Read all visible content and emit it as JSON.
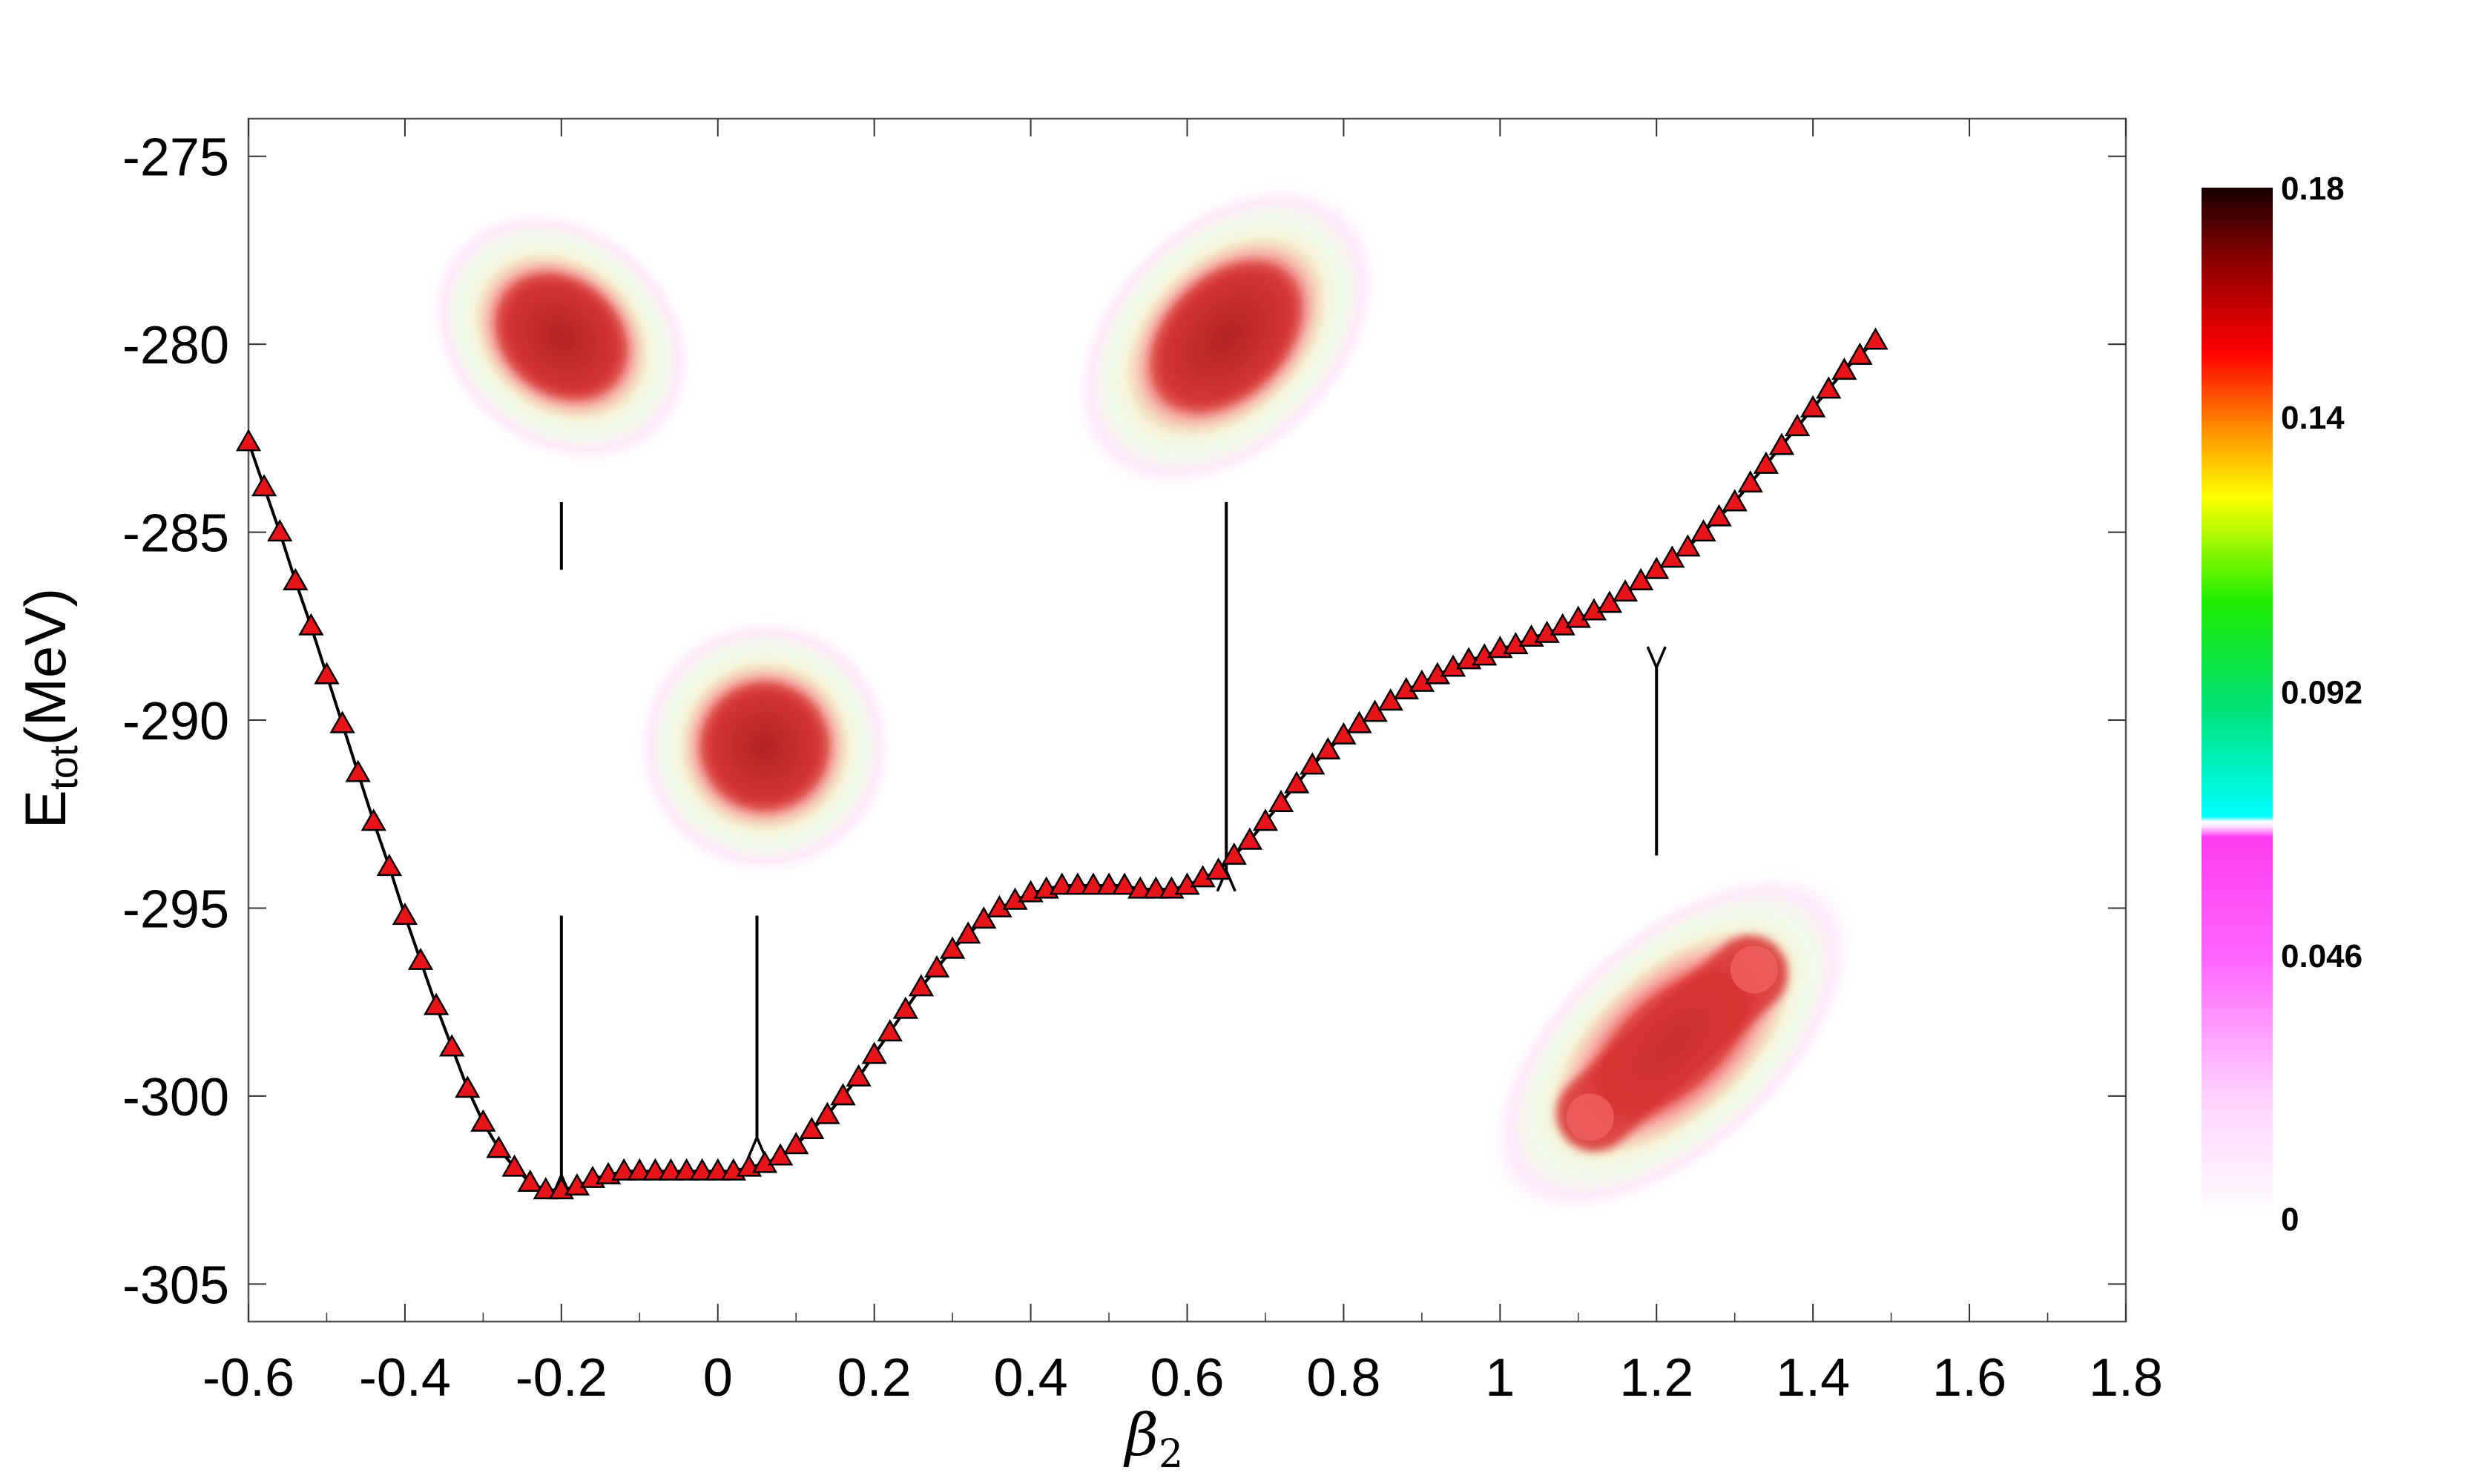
{
  "chart_data": {
    "type": "line",
    "xlabel_base": "β",
    "xlabel_sub": "2",
    "ylabel_base": "E",
    "ylabel_sub": "tot",
    "ylabel_unit": "(MeV)",
    "xlim": [
      -0.6,
      1.8
    ],
    "ylim": [
      -306,
      -274
    ],
    "xticks": [
      -0.6,
      -0.4,
      -0.2,
      0,
      0.2,
      0.4,
      0.6,
      0.8,
      1,
      1.2,
      1.4,
      1.6,
      1.8
    ],
    "xtick_labels": [
      "-0.6",
      "-0.4",
      "-0.2",
      "0",
      "0.2",
      "0.4",
      "0.6",
      "0.8",
      "1",
      "1.2",
      "1.4",
      "1.6",
      "1.8"
    ],
    "yticks": [
      -275,
      -280,
      -285,
      -290,
      -295,
      -300,
      -305
    ],
    "ytick_labels": [
      "-275",
      "-280",
      "-285",
      "-290",
      "-295",
      "-300",
      "-305"
    ],
    "marker": "triangle",
    "marker_color": "#e8141a",
    "line_color": "#000000",
    "series": [
      {
        "x_start": -0.6,
        "x_step": 0.02,
        "y": [
          -282.6,
          -283.8,
          -285.0,
          -286.3,
          -287.5,
          -288.8,
          -290.1,
          -291.4,
          -292.7,
          -293.9,
          -295.2,
          -296.4,
          -297.6,
          -298.7,
          -299.8,
          -300.7,
          -301.4,
          -301.9,
          -302.3,
          -302.5,
          -302.5,
          -302.4,
          -302.2,
          -302.1,
          -302.0,
          -302.0,
          -302.0,
          -302.0,
          -302.0,
          -302.0,
          -302.0,
          -302.0,
          -301.9,
          -301.8,
          -301.6,
          -301.3,
          -300.9,
          -300.5,
          -300.0,
          -299.5,
          -298.9,
          -298.3,
          -297.7,
          -297.1,
          -296.6,
          -296.1,
          -295.7,
          -295.3,
          -295.0,
          -294.8,
          -294.6,
          -294.5,
          -294.4,
          -294.4,
          -294.4,
          -294.4,
          -294.4,
          -294.5,
          -294.5,
          -294.5,
          -294.4,
          -294.2,
          -294.0,
          -293.6,
          -293.2,
          -292.7,
          -292.2,
          -291.7,
          -291.2,
          -290.8,
          -290.4,
          -290.1,
          -289.8,
          -289.5,
          -289.2,
          -289.0,
          -288.8,
          -288.6,
          -288.4,
          -288.3,
          -288.1,
          -288.0,
          -287.8,
          -287.7,
          -287.5,
          -287.3,
          -287.1,
          -286.9,
          -286.6,
          -286.3,
          -286.0,
          -285.7,
          -285.4,
          -285.0,
          -284.6,
          -284.2,
          -283.7,
          -283.2,
          -282.7,
          -282.2,
          -281.7,
          -281.2,
          -280.7,
          -280.3,
          -279.9
        ]
      }
    ],
    "colorbar": {
      "tick_labels": [
        "0.18",
        "0.14",
        "0.092",
        "0.046",
        "0"
      ],
      "tick_values": [
        0.18,
        0.14,
        0.092,
        0.046,
        0
      ],
      "range": [
        0,
        0.18
      ]
    },
    "arrows": [
      {
        "x": -0.2,
        "y_from": -295.2,
        "y_to": -302.1,
        "direction": "down"
      },
      {
        "x": 0.05,
        "y_from": -295.2,
        "y_to": -301.1,
        "direction": "down"
      },
      {
        "x": 0.65,
        "y_from": -284.2,
        "y_to": -294.0,
        "direction": "down"
      },
      {
        "x": 1.2,
        "y_from": -293.6,
        "y_to": -288.6,
        "direction": "up"
      },
      {
        "x": -0.2,
        "y_from": -284.2,
        "y_to": -286.0,
        "direction": "none"
      }
    ],
    "density_insets": [
      {
        "shape": "dumbbell-compact",
        "x": -0.2,
        "y": -279.8,
        "rotation_deg": 40
      },
      {
        "shape": "sphere",
        "x": 0.06,
        "y": -290.7,
        "rotation_deg": 0
      },
      {
        "shape": "elongated",
        "x": 0.65,
        "y": -279.8,
        "rotation_deg": -45
      },
      {
        "shape": "rod",
        "x": 1.22,
        "y": -298.6,
        "rotation_deg": -42
      }
    ]
  }
}
